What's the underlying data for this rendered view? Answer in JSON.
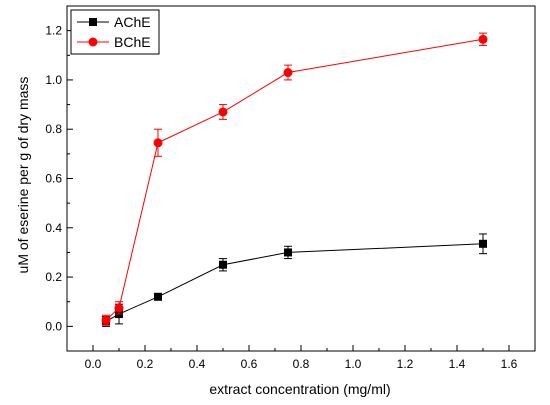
{
  "chart_data": {
    "type": "line",
    "xlabel": "extract concentration (mg/ml)",
    "ylabel": "uM of eserine per g of dry mass",
    "xlim": [
      -0.1,
      1.7
    ],
    "ylim": [
      -0.1,
      1.3
    ],
    "xticks": [
      "0.0",
      "0.2",
      "0.4",
      "0.6",
      "0.8",
      "1.0",
      "1.2",
      "1.4",
      "1.6"
    ],
    "yticks": [
      "0.0",
      "0.2",
      "0.4",
      "0.6",
      "0.8",
      "1.0",
      "1.2"
    ],
    "grid": false,
    "legend_position": "top-left",
    "series": [
      {
        "name": "AChE",
        "color": "#000000",
        "marker": "square",
        "x": [
          0.05,
          0.1,
          0.25,
          0.5,
          0.75,
          1.5
        ],
        "y": [
          0.02,
          0.05,
          0.12,
          0.25,
          0.3,
          0.335
        ],
        "err": [
          0.02,
          0.04,
          0.01,
          0.025,
          0.025,
          0.04
        ]
      },
      {
        "name": "BChE",
        "color": "#ff0000",
        "marker": "circle",
        "x": [
          0.05,
          0.1,
          0.25,
          0.5,
          0.75,
          1.5
        ],
        "y": [
          0.025,
          0.075,
          0.745,
          0.87,
          1.03,
          1.165
        ],
        "err": [
          0.02,
          0.025,
          0.055,
          0.03,
          0.03,
          0.025
        ]
      }
    ]
  }
}
